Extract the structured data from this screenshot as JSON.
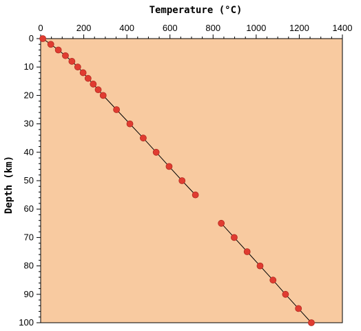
{
  "chart_data": {
    "type": "line",
    "xlabel": "Temperature (°C)",
    "ylabel": "Depth (km)",
    "xlim": [
      0,
      1400
    ],
    "ylim": [
      0,
      100
    ],
    "x_ticks": [
      0,
      200,
      400,
      600,
      800,
      1000,
      1200,
      1400
    ],
    "y_ticks": [
      0,
      10,
      20,
      30,
      40,
      50,
      60,
      70,
      80,
      90,
      100
    ],
    "x_axis_position": "top",
    "y_axis_inverted": true,
    "grid": false,
    "colors": {
      "plot_background": "#f8caa0",
      "marker": "#e03c31",
      "line": "#000000"
    },
    "series": [
      {
        "segments": [
          {
            "points": [
              [
                10,
                0
              ],
              [
                47,
                2
              ],
              [
                82,
                4
              ],
              [
                115,
                6
              ],
              [
                145,
                8
              ],
              [
                172,
                10
              ],
              [
                197,
                12
              ],
              [
                220,
                14
              ],
              [
                244,
                16
              ],
              [
                267,
                18
              ],
              [
                290,
                20
              ],
              [
                352,
                25
              ],
              [
                414,
                30
              ],
              [
                476,
                35
              ],
              [
                536,
                40
              ],
              [
                596,
                45
              ],
              [
                656,
                50
              ],
              [
                718,
                55
              ]
            ]
          },
          {
            "points": [
              [
                838,
                65
              ],
              [
                898,
                70
              ],
              [
                958,
                75
              ],
              [
                1018,
                80
              ],
              [
                1078,
                85
              ],
              [
                1136,
                90
              ],
              [
                1196,
                95
              ],
              [
                1256,
                100
              ]
            ]
          }
        ]
      }
    ]
  }
}
